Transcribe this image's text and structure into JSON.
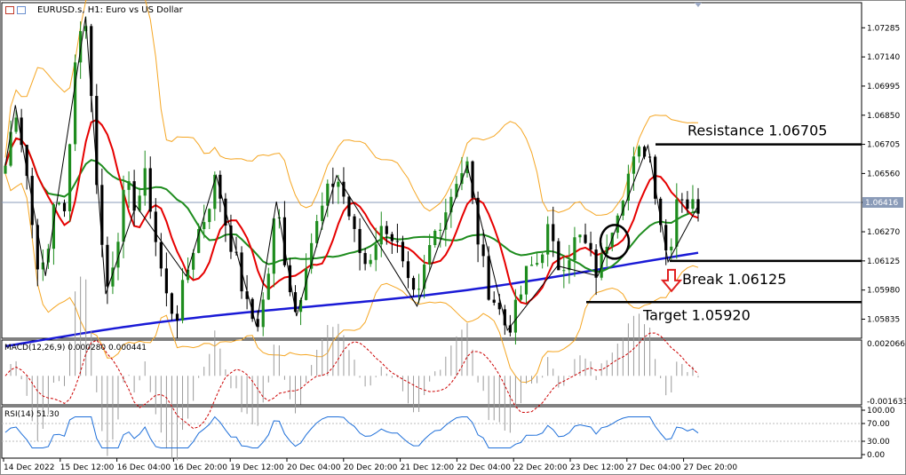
{
  "header": {
    "title": "EURUSD.s, H1:  Euro vs US Dollar"
  },
  "colors": {
    "background": "#ffffff",
    "bull_candle": "#1e8c1e",
    "bear_candle": "#000000",
    "bollinger": "#f5a623",
    "ma_fast": "#e60000",
    "ma_mid": "#1e8c1e",
    "ma_slow": "#1a1ad6",
    "zigzag": "#000000",
    "macd_signal": "#cc0000",
    "macd_hist": "#9a9a9a",
    "rsi": "#1e6fd9",
    "arrow": "#e02020"
  },
  "chart_data": [
    {
      "type": "candlestick",
      "symbol": "EURUSD.s",
      "timeframe": "H1",
      "ylim": [
        1.0574,
        1.0741
      ],
      "y_ticks": [
        "1.07285",
        "1.07140",
        "1.06995",
        "1.06850",
        "1.06705",
        "1.06560",
        "1.06416",
        "1.06270",
        "1.06125",
        "1.05980",
        "1.05835"
      ],
      "current_price": "1.06416",
      "x_ticks": [
        "14 Dec 2022",
        "15 Dec 12:00",
        "16 Dec 04:00",
        "16 Dec 20:00",
        "19 Dec 12:00",
        "20 Dec 04:00",
        "20 Dec 20:00",
        "21 Dec 12:00",
        "22 Dec 04:00",
        "22 Dec 20:00",
        "23 Dec 12:00",
        "27 Dec 04:00",
        "27 Dec 20:00"
      ],
      "price_path": [
        1.066,
        1.069,
        1.0662,
        1.0615,
        1.0605,
        1.065,
        1.0632,
        1.072,
        1.0734,
        1.066,
        1.0596,
        1.062,
        1.065,
        1.064,
        1.0655,
        1.0622,
        1.0595,
        1.0584,
        1.0605,
        1.0625,
        1.0636,
        1.0655,
        1.063,
        1.0612,
        1.059,
        1.058,
        1.0598,
        1.0642,
        1.0608,
        1.0585,
        1.0615,
        1.063,
        1.0645,
        1.0655,
        1.064,
        1.062,
        1.061,
        1.0625,
        1.063,
        1.062,
        1.06,
        1.059,
        1.0615,
        1.063,
        1.064,
        1.0655,
        1.066,
        1.0625,
        1.06,
        1.059,
        1.0578,
        1.059,
        1.0608,
        1.0612,
        1.0628,
        1.061,
        1.0615,
        1.0625,
        1.0618,
        1.0605,
        1.0625,
        1.064,
        1.0655,
        1.0665,
        1.067,
        1.064,
        1.0612,
        1.065,
        1.064,
        1.064
      ],
      "levels": [
        {
          "name": "resistance",
          "price": 1.06705,
          "label": "Resistance 1.06705"
        },
        {
          "name": "break",
          "price": 1.06125,
          "label": "Break 1.06125"
        },
        {
          "name": "target",
          "price": 1.0592,
          "label": "Target 1.05920"
        }
      ],
      "indicators": [
        "Bollinger Bands",
        "Moving Average (fast)",
        "Moving Average (medium)",
        "Moving Average (slow)",
        "ZigZag"
      ],
      "annotations": [
        "circle marking crossover",
        "red down arrow at break level"
      ]
    },
    {
      "type": "histogram",
      "name": "MACD(12,26,9) 0.000280 0.000441",
      "ylim": [
        -0.001633,
        0.002066
      ],
      "y_ticks": [
        "0.002066",
        "-0.001633"
      ],
      "main": 0.00028,
      "signal": 0.000441
    },
    {
      "type": "line",
      "name": "RSI(14) 51.30",
      "ylim": [
        0,
        100
      ],
      "y_ticks": [
        "100.00",
        "70.00",
        "30.00",
        "0.00"
      ],
      "value": 51.3
    }
  ]
}
